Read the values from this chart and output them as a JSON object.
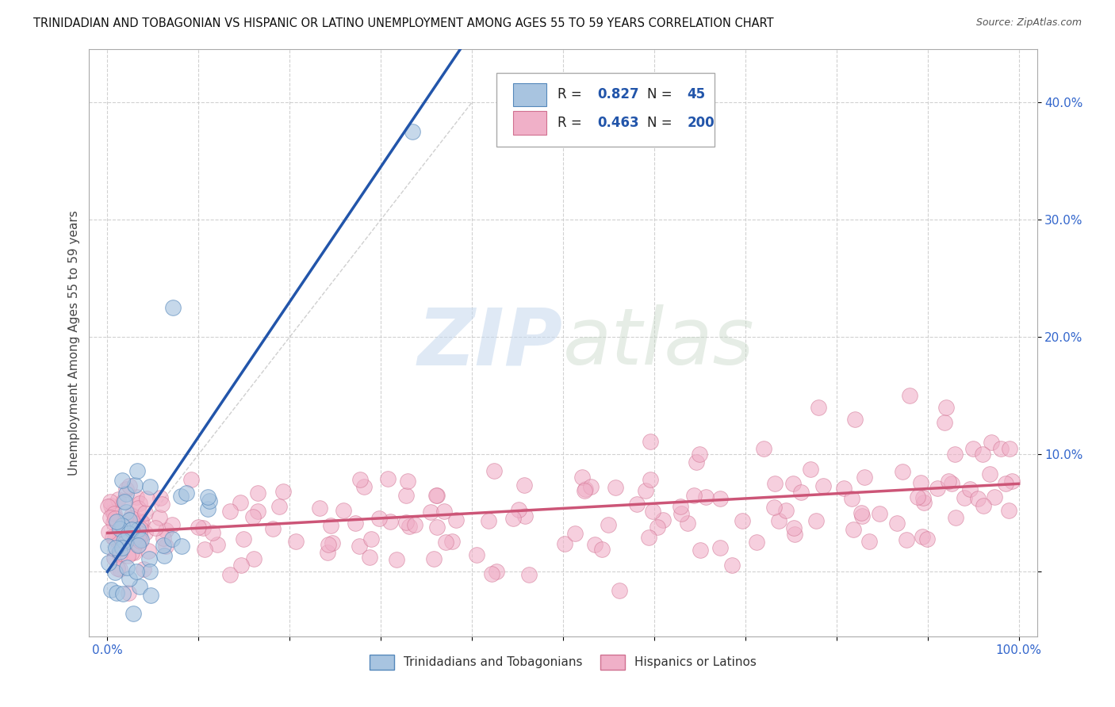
{
  "title": "TRINIDADIAN AND TOBAGONIAN VS HISPANIC OR LATINO UNEMPLOYMENT AMONG AGES 55 TO 59 YEARS CORRELATION CHART",
  "source": "Source: ZipAtlas.com",
  "ylabel": "Unemployment Among Ages 55 to 59 years",
  "xlim": [
    -0.02,
    1.02
  ],
  "ylim": [
    -0.055,
    0.445
  ],
  "xticks": [
    0.0,
    0.1,
    0.2,
    0.3,
    0.4,
    0.5,
    0.6,
    0.7,
    0.8,
    0.9,
    1.0
  ],
  "xtick_labels": [
    "0.0%",
    "",
    "",
    "",
    "",
    "",
    "",
    "",
    "",
    "",
    "100.0%"
  ],
  "yticks": [
    0.0,
    0.1,
    0.2,
    0.3,
    0.4
  ],
  "ytick_labels": [
    "",
    "10.0%",
    "20.0%",
    "30.0%",
    "40.0%"
  ],
  "blue_R": 0.827,
  "blue_N": 45,
  "pink_R": 0.463,
  "pink_N": 200,
  "blue_color": "#a8c4e0",
  "blue_edge_color": "#5588bb",
  "blue_line_color": "#2255aa",
  "pink_color": "#f0b0c8",
  "pink_edge_color": "#d07090",
  "pink_line_color": "#cc5577",
  "watermark_zip": "ZIP",
  "watermark_atlas": "atlas",
  "legend_label_blue": "Trinidadians and Tobagonians",
  "legend_label_pink": "Hispanics or Latinos",
  "background_color": "#ffffff",
  "grid_color": "#cccccc",
  "title_fontsize": 10.5,
  "axis_tick_color": "#3366cc",
  "ylabel_color": "#555555"
}
